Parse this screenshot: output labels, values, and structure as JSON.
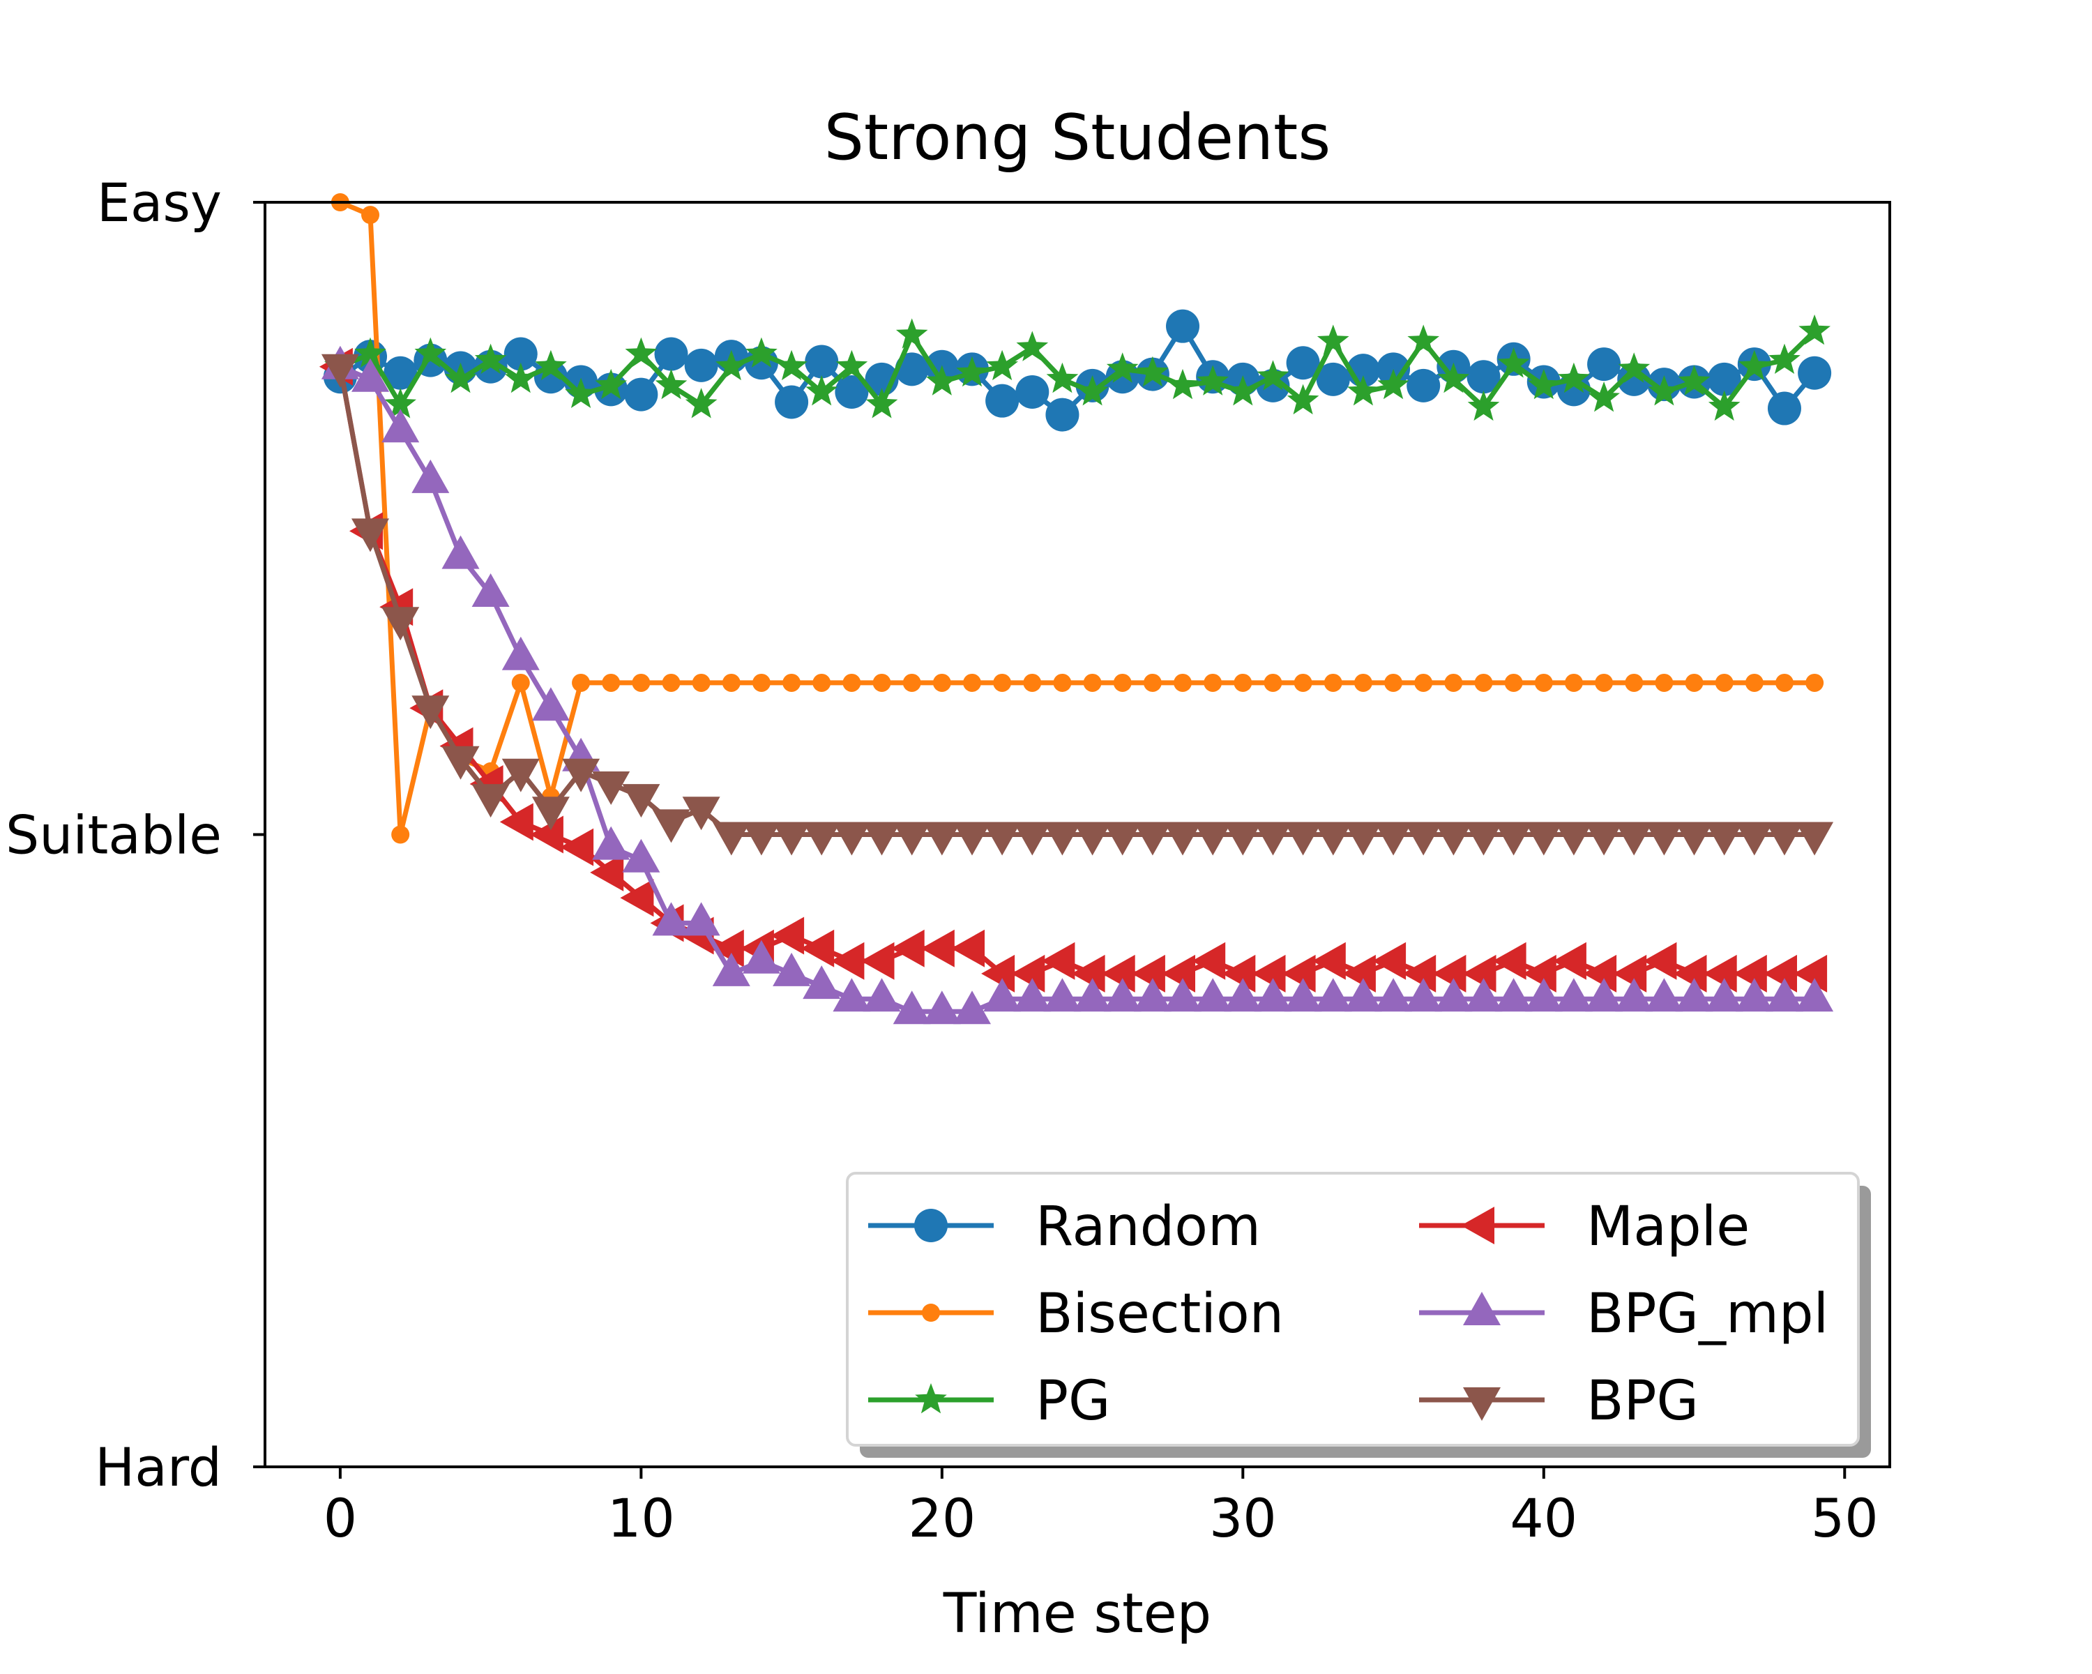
{
  "chart_data": {
    "type": "line",
    "title": "Strong Students",
    "xlabel": "Time step",
    "ylabel": "",
    "xlim": [
      -2.5,
      51.5
    ],
    "ylim": [
      0,
      1
    ],
    "xticks": [
      0,
      10,
      20,
      30,
      40,
      50
    ],
    "xtick_labels": [
      "0",
      "10",
      "20",
      "30",
      "40",
      "50"
    ],
    "yticks": [
      0,
      0.5,
      1
    ],
    "ytick_labels": [
      "Hard",
      "Suitable",
      "Easy"
    ],
    "grid": false,
    "legend_position": "lower-right",
    "legend_columns": 2,
    "x": [
      0,
      1,
      2,
      3,
      4,
      5,
      6,
      7,
      8,
      9,
      10,
      11,
      12,
      13,
      14,
      15,
      16,
      17,
      18,
      19,
      20,
      21,
      22,
      23,
      24,
      25,
      26,
      27,
      28,
      29,
      30,
      31,
      32,
      33,
      34,
      35,
      36,
      37,
      38,
      39,
      40,
      41,
      42,
      43,
      44,
      45,
      46,
      47,
      48,
      49
    ],
    "series": [
      {
        "name": "Random",
        "color": "#1f77b4",
        "marker": "circle",
        "marker_size": 24,
        "values": [
          0.862,
          0.878,
          0.865,
          0.875,
          0.869,
          0.87,
          0.88,
          0.862,
          0.858,
          0.852,
          0.848,
          0.88,
          0.871,
          0.878,
          0.873,
          0.842,
          0.874,
          0.85,
          0.86,
          0.868,
          0.87,
          0.868,
          0.843,
          0.85,
          0.832,
          0.855,
          0.862,
          0.864,
          0.902,
          0.862,
          0.86,
          0.855,
          0.873,
          0.86,
          0.867,
          0.868,
          0.855,
          0.87,
          0.862,
          0.876,
          0.858,
          0.852,
          0.872,
          0.86,
          0.856,
          0.858,
          0.86,
          0.872,
          0.837,
          0.865
        ]
      },
      {
        "name": "Bisection",
        "color": "#ff7f0e",
        "marker": "point",
        "marker_size": 13,
        "values": [
          1.0,
          0.99,
          0.5,
          0.6,
          0.56,
          0.55,
          0.62,
          0.53,
          0.62,
          0.62,
          0.62,
          0.62,
          0.62,
          0.62,
          0.62,
          0.62,
          0.62,
          0.62,
          0.62,
          0.62,
          0.62,
          0.62,
          0.62,
          0.62,
          0.62,
          0.62,
          0.62,
          0.62,
          0.62,
          0.62,
          0.62,
          0.62,
          0.62,
          0.62,
          0.62,
          0.62,
          0.62,
          0.62,
          0.62,
          0.62,
          0.62,
          0.62,
          0.62,
          0.62,
          0.62,
          0.62,
          0.62,
          0.62,
          0.62,
          0.62
        ]
      },
      {
        "name": "PG",
        "color": "#2ca02c",
        "marker": "star",
        "marker_size": 24,
        "values": [
          0.87,
          0.88,
          0.84,
          0.88,
          0.86,
          0.875,
          0.86,
          0.87,
          0.848,
          0.855,
          0.88,
          0.855,
          0.84,
          0.87,
          0.88,
          0.87,
          0.85,
          0.87,
          0.84,
          0.895,
          0.858,
          0.865,
          0.87,
          0.885,
          0.86,
          0.85,
          0.868,
          0.865,
          0.855,
          0.858,
          0.85,
          0.862,
          0.843,
          0.89,
          0.85,
          0.855,
          0.89,
          0.86,
          0.838,
          0.872,
          0.855,
          0.86,
          0.845,
          0.868,
          0.85,
          0.858,
          0.838,
          0.87,
          0.875,
          0.898
        ]
      },
      {
        "name": "Maple",
        "color": "#d62728",
        "marker": "triangle-left",
        "marker_size": 30,
        "values": [
          0.87,
          0.74,
          0.68,
          0.6,
          0.57,
          0.54,
          0.51,
          0.5,
          0.49,
          0.47,
          0.45,
          0.43,
          0.42,
          0.41,
          0.41,
          0.42,
          0.41,
          0.4,
          0.4,
          0.41,
          0.41,
          0.41,
          0.39,
          0.39,
          0.4,
          0.39,
          0.39,
          0.39,
          0.39,
          0.4,
          0.39,
          0.39,
          0.39,
          0.4,
          0.39,
          0.4,
          0.39,
          0.39,
          0.39,
          0.4,
          0.39,
          0.4,
          0.39,
          0.39,
          0.4,
          0.39,
          0.39,
          0.39,
          0.39,
          0.39
        ]
      },
      {
        "name": "BPG_mpl",
        "color": "#9467bd",
        "marker": "triangle-up",
        "marker_size": 30,
        "values": [
          0.87,
          0.86,
          0.82,
          0.78,
          0.72,
          0.69,
          0.64,
          0.6,
          0.56,
          0.49,
          0.48,
          0.43,
          0.43,
          0.39,
          0.4,
          0.39,
          0.38,
          0.37,
          0.37,
          0.36,
          0.36,
          0.36,
          0.37,
          0.37,
          0.37,
          0.37,
          0.37,
          0.37,
          0.37,
          0.37,
          0.37,
          0.37,
          0.37,
          0.37,
          0.37,
          0.37,
          0.37,
          0.37,
          0.37,
          0.37,
          0.37,
          0.37,
          0.37,
          0.37,
          0.37,
          0.37,
          0.37,
          0.37,
          0.37,
          0.37
        ]
      },
      {
        "name": "BPG",
        "color": "#8c564b",
        "marker": "triangle-down",
        "marker_size": 30,
        "values": [
          0.87,
          0.74,
          0.67,
          0.6,
          0.56,
          0.53,
          0.55,
          0.52,
          0.55,
          0.54,
          0.53,
          0.51,
          0.52,
          0.5,
          0.5,
          0.5,
          0.5,
          0.5,
          0.5,
          0.5,
          0.5,
          0.5,
          0.5,
          0.5,
          0.5,
          0.5,
          0.5,
          0.5,
          0.5,
          0.5,
          0.5,
          0.5,
          0.5,
          0.5,
          0.5,
          0.5,
          0.5,
          0.5,
          0.5,
          0.5,
          0.5,
          0.5,
          0.5,
          0.5,
          0.5,
          0.5,
          0.5,
          0.5,
          0.5,
          0.5
        ]
      }
    ]
  }
}
